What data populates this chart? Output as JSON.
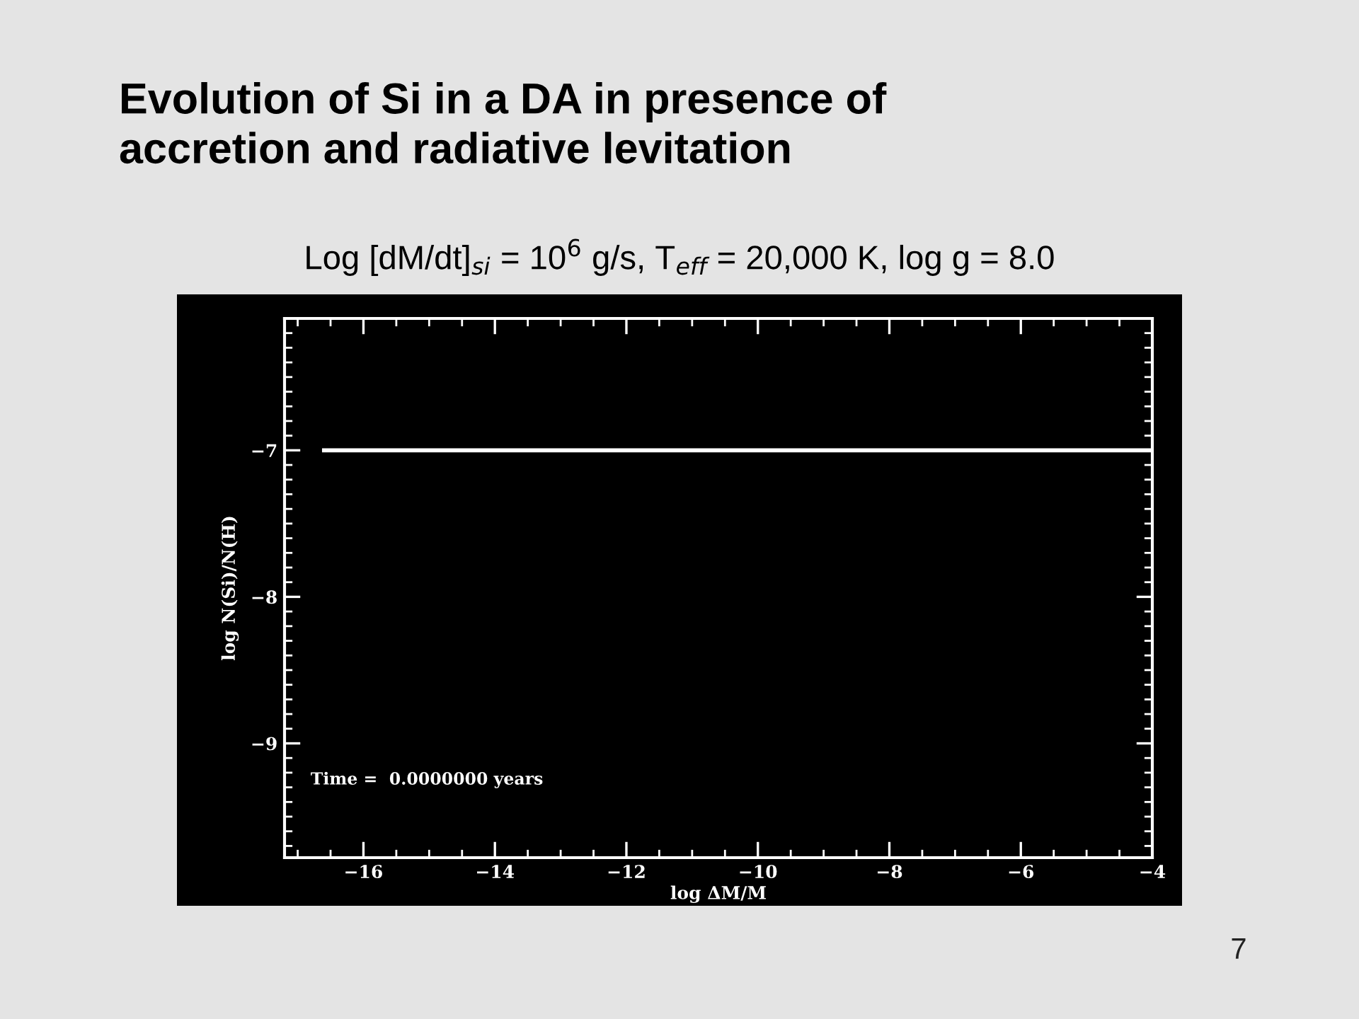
{
  "chart_data": {
    "type": "line",
    "title": "Evolution of Si in a DA in presence of\naccretion and radiative levitation",
    "subtitle": "Log [dM/dt]$_{si}$ = 10$^{6}$ g/s, T$_{eff}$ = 20,000 K, log g = 8.0",
    "xlabel": "log ΔM/M",
    "ylabel": "log N(Si)/N(H)",
    "x": [
      -16.6,
      -4
    ],
    "series": [
      {
        "color": "#ffffff",
        "values": [
          -7,
          -7
        ]
      }
    ],
    "xlim": [
      -17.2,
      -4
    ],
    "ylim": [
      -9.78,
      -6.1
    ],
    "xticks": [
      {
        "value": -16,
        "label": "−16"
      },
      {
        "value": -14,
        "label": "−14"
      },
      {
        "value": -12,
        "label": "−12"
      },
      {
        "value": -10,
        "label": "−10"
      },
      {
        "value": -8,
        "label": "−8"
      },
      {
        "value": -6,
        "label": "−6"
      },
      {
        "value": -4,
        "label": "−4"
      }
    ],
    "yticks": [
      {
        "value": -9,
        "label": "−9"
      },
      {
        "value": -8,
        "label": "−8"
      },
      {
        "value": -7,
        "label": "−7"
      }
    ],
    "grid": false,
    "marker": "none",
    "line_style": "solid",
    "annotations": [
      "Time =  0.0000000 years",
      "7"
    ]
  }
}
